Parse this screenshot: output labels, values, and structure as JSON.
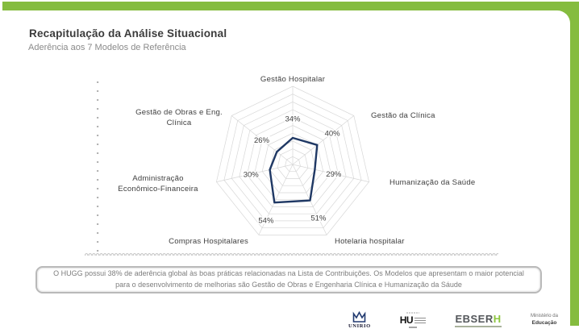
{
  "slide": {
    "title": "Recapitulação da Análise Situacional",
    "subtitle": "Aderência aos 7 Modelos de Referência",
    "note": "O HUGG possui 38% de aderência global às boas práticas relacionadas na Lista de Contribuições. Os Modelos que apresentam o maior potencial para o desenvolvimento de melhorias são Gestão de Obras e Engenharia Clínica e Humanização da Sáude",
    "accent_green": "#85BC3F"
  },
  "chart_data": {
    "type": "radar",
    "title": "Aderência aos 7 Modelos de Referência",
    "categories": [
      "Gestão Hospitalar",
      "Gestão da Clínica",
      "Humanização da Saúde",
      "Hotelaria hospitalar",
      "Compras Hospitalares",
      "Administração Econômico-Financeira",
      "Gestão de Obras e Eng. Clínica"
    ],
    "category_lines": [
      [
        "Gestão Hospitalar"
      ],
      [
        "Gestão da Clínica"
      ],
      [
        "Humanização da Saúde"
      ],
      [
        "Hotelaria hospitalar"
      ],
      [
        "Compras Hospitalares"
      ],
      [
        "Administração",
        "Econômico-Financeira"
      ],
      [
        "Gestão de Obras e Eng.",
        "Clínica"
      ]
    ],
    "values": [
      34,
      40,
      29,
      51,
      54,
      30,
      26
    ],
    "value_labels": [
      "34%",
      "40%",
      "29%",
      "51%",
      "54%",
      "30%",
      "26%"
    ],
    "unit": "%",
    "axis_max": 100,
    "grid_rings": 10,
    "grid_on": true,
    "legend": "none",
    "series_color": "#1F3864",
    "grid_color": "#D7D7D7",
    "label_color": "#3f3f3f"
  },
  "footer": {
    "unirio": "UNIRIO",
    "hu": "HU",
    "ebserh_prefix": "EBSER",
    "ebserh_suffix": "H",
    "ministry": [
      "Ministério da",
      "Educação"
    ]
  }
}
